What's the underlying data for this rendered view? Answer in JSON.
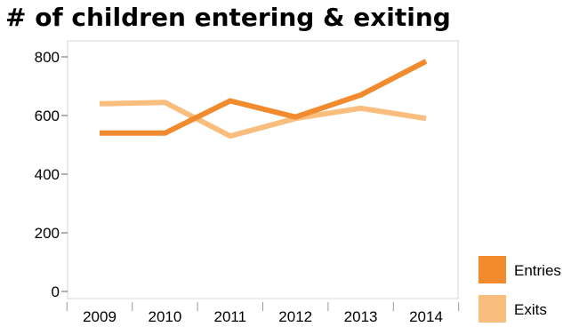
{
  "chart_data": {
    "type": "line",
    "title": "# of children entering & exiting",
    "xlabel": "",
    "ylabel": "",
    "categories": [
      "2009",
      "2010",
      "2011",
      "2012",
      "2013",
      "2014"
    ],
    "series": [
      {
        "name": "Entries",
        "color": "#f28a2e",
        "values": [
          540,
          540,
          650,
          595,
          670,
          785
        ]
      },
      {
        "name": "Exits",
        "color": "#f9bd7e",
        "values": [
          640,
          645,
          530,
          590,
          625,
          590
        ]
      }
    ],
    "ylim": [
      0,
      800
    ],
    "yticks": [
      0,
      200,
      400,
      600,
      800
    ],
    "grid": false,
    "legend_position": "bottom-right"
  }
}
